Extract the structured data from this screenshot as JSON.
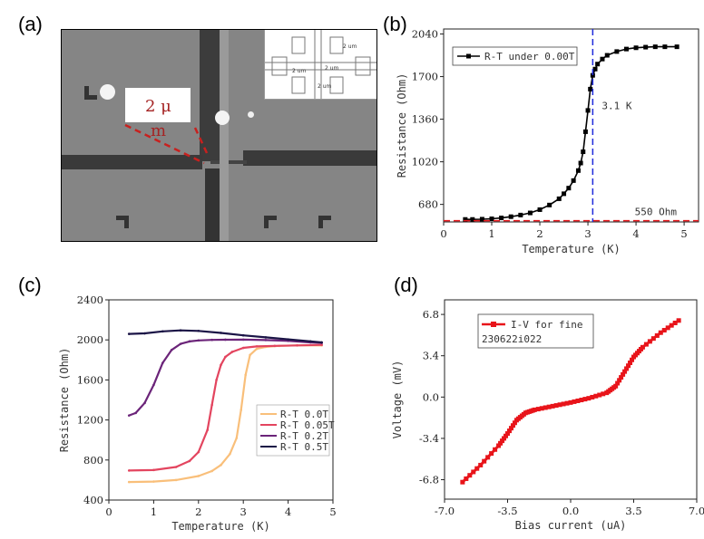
{
  "panels": {
    "a": "(a)",
    "b": "(b)",
    "c": "(c)",
    "d": "(d)"
  },
  "sem": {
    "scale_bar_label": "2 μ",
    "scale_bar_label_2": "m",
    "inset_labels": [
      "2 um",
      "2 um",
      "2 um",
      "2 um"
    ]
  },
  "colors": {
    "red": "#e8141a",
    "black": "#000000",
    "blue": "#1f2bdc",
    "c_0T": "#f9bf7a",
    "c_005T": "#e3455f",
    "c_02T": "#6b2479",
    "c_05T": "#1b1446"
  },
  "chart_data": [
    {
      "panel": "b",
      "type": "line",
      "xlabel": "Temperature (K)",
      "ylabel": "Resistance (Ohm)",
      "xlim": [
        0,
        5.3
      ],
      "ylim": [
        540,
        2080
      ],
      "xticks": [
        "0",
        "1",
        "2",
        "3",
        "4",
        "5"
      ],
      "yticks": [
        "680",
        "1020",
        "1360",
        "1700",
        "2040"
      ],
      "legend": [
        "R-T under 0.00T"
      ],
      "annotations": {
        "vline_label": "3.1 K",
        "vline_x": 3.1,
        "hline_label": "550 Ohm",
        "hline_y": 550
      },
      "series": [
        {
          "name": "R-T under 0.00T",
          "x": [
            0.45,
            0.6,
            0.8,
            1.0,
            1.2,
            1.4,
            1.6,
            1.8,
            2.0,
            2.2,
            2.4,
            2.5,
            2.6,
            2.7,
            2.8,
            2.85,
            2.9,
            2.95,
            3.0,
            3.05,
            3.1,
            3.15,
            3.2,
            3.3,
            3.4,
            3.6,
            3.8,
            4.0,
            4.2,
            4.4,
            4.6,
            4.85
          ],
          "y": [
            560,
            560,
            562,
            565,
            572,
            582,
            595,
            612,
            638,
            675,
            725,
            765,
            810,
            870,
            950,
            1010,
            1100,
            1260,
            1430,
            1600,
            1710,
            1760,
            1800,
            1840,
            1870,
            1900,
            1920,
            1930,
            1935,
            1938,
            1938,
            1938
          ]
        }
      ]
    },
    {
      "panel": "c",
      "type": "line",
      "xlabel": "Temperature (K)",
      "ylabel": "Resistance (Ohm)",
      "xlim": [
        0,
        5
      ],
      "ylim": [
        400,
        2400
      ],
      "xticks": [
        "0",
        "1",
        "2",
        "3",
        "4",
        "5"
      ],
      "yticks": [
        "400",
        "800",
        "1200",
        "1600",
        "2000",
        "2400"
      ],
      "legend": [
        "R-T 0.0T",
        "R-T 0.05T",
        "R-T 0.2T",
        "R-T 0.5T"
      ],
      "series": [
        {
          "name": "R-T 0.0T",
          "x": [
            0.45,
            1.0,
            1.5,
            2.0,
            2.3,
            2.5,
            2.7,
            2.85,
            2.95,
            3.05,
            3.15,
            3.3,
            3.5,
            3.8,
            4.2,
            4.75
          ],
          "y": [
            580,
            585,
            600,
            640,
            690,
            750,
            860,
            1020,
            1300,
            1650,
            1850,
            1910,
            1930,
            1940,
            1945,
            1945
          ]
        },
        {
          "name": "R-T 0.05T",
          "x": [
            0.45,
            1.0,
            1.5,
            1.8,
            2.0,
            2.2,
            2.3,
            2.4,
            2.5,
            2.6,
            2.75,
            3.0,
            3.3,
            3.7,
            4.2,
            4.75
          ],
          "y": [
            695,
            700,
            730,
            790,
            880,
            1100,
            1350,
            1600,
            1750,
            1830,
            1880,
            1920,
            1935,
            1940,
            1945,
            1950
          ]
        },
        {
          "name": "R-T 0.2T",
          "x": [
            0.45,
            0.6,
            0.8,
            1.0,
            1.2,
            1.4,
            1.6,
            1.8,
            2.0,
            2.3,
            2.6,
            3.0,
            3.5,
            4.0,
            4.5,
            4.75
          ],
          "y": [
            1245,
            1270,
            1370,
            1550,
            1770,
            1900,
            1960,
            1985,
            1995,
            2000,
            2002,
            2003,
            1998,
            1990,
            1975,
            1970
          ]
        },
        {
          "name": "R-T 0.5T",
          "x": [
            0.45,
            0.8,
            1.2,
            1.6,
            2.0,
            2.5,
            3.0,
            3.5,
            4.0,
            4.5,
            4.75
          ],
          "y": [
            2060,
            2065,
            2085,
            2095,
            2090,
            2070,
            2045,
            2025,
            2005,
            1985,
            1975
          ]
        }
      ]
    },
    {
      "panel": "d",
      "type": "line",
      "xlabel": "Bias current (uA)",
      "ylabel": "Voltage (mV)",
      "xlim": [
        -7.0,
        7.0
      ],
      "ylim": [
        -8.4,
        8.0
      ],
      "xticks": [
        "-7.0",
        "-3.5",
        "0.0",
        "3.5",
        "7.0"
      ],
      "yticks": [
        "-6.8",
        "-3.4",
        "0.0",
        "3.4",
        "6.8"
      ],
      "legend": [
        "I-V for fine",
        "230622i022"
      ],
      "series": [
        {
          "name": "I-V for fine",
          "x": [
            -6.0,
            -5.0,
            -4.0,
            -3.5,
            -3.0,
            -2.5,
            -2.0,
            -1.0,
            0.0,
            1.0,
            2.0,
            2.5,
            3.0,
            3.5,
            4.0,
            5.0,
            6.0
          ],
          "y": [
            -7.0,
            -5.6,
            -4.0,
            -3.0,
            -1.9,
            -1.3,
            -1.05,
            -0.75,
            -0.45,
            -0.1,
            0.35,
            0.9,
            2.1,
            3.3,
            4.1,
            5.3,
            6.3
          ]
        }
      ]
    }
  ]
}
